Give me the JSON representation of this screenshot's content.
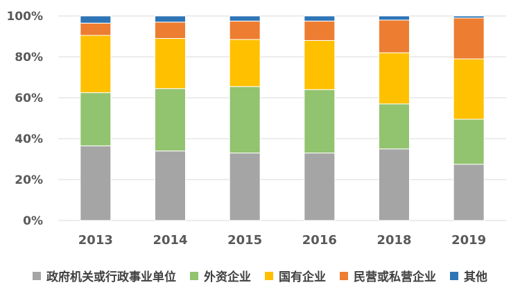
{
  "chart_data": {
    "type": "bar",
    "stacked": true,
    "percent_stacked": true,
    "title": "",
    "xlabel": "",
    "ylabel": "",
    "categories": [
      "2013",
      "2014",
      "2015",
      "2016",
      "2018",
      "2019"
    ],
    "ylim": [
      0,
      100
    ],
    "yticks": [
      "0%",
      "20%",
      "40%",
      "60%",
      "80%",
      "100%"
    ],
    "grid": true,
    "legend_position": "bottom",
    "series": [
      {
        "name": "政府机关或行政事业单位",
        "color": "#a5a5a5",
        "values": [
          36.5,
          34,
          33,
          33,
          35,
          27.5
        ]
      },
      {
        "name": "外资企业",
        "color": "#92c36f",
        "values": [
          26,
          30.5,
          32.5,
          31,
          22,
          22
        ]
      },
      {
        "name": "国有企业",
        "color": "#ffc000",
        "values": [
          28,
          24.5,
          23,
          24,
          25,
          29.5
        ]
      },
      {
        "name": "民营或私营企业",
        "color": "#ed7d31",
        "values": [
          6,
          8,
          9,
          9.5,
          16,
          20
        ]
      },
      {
        "name": "其他",
        "color": "#2e75b6",
        "values": [
          3.5,
          3,
          2.5,
          2.5,
          2,
          1
        ]
      }
    ]
  }
}
